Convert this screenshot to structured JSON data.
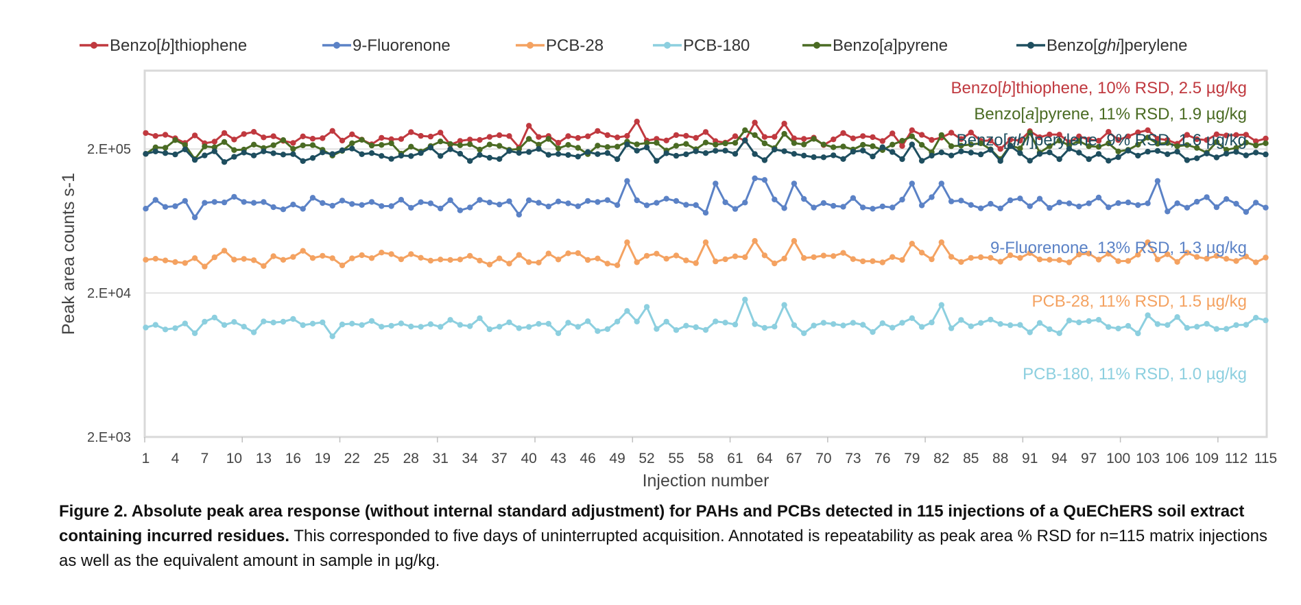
{
  "chart_data": {
    "type": "line",
    "ylabel": "Peak area counts s-1",
    "xlabel": "Injection number",
    "y_scale": "log",
    "ylim": [
      2000,
      700000
    ],
    "y_ticks": [
      2000,
      20000,
      200000
    ],
    "y_tick_labels": [
      "2.E+03",
      "2.E+04",
      "2.E+05"
    ],
    "x_range": [
      1,
      115
    ],
    "x_tick_labels": [
      1,
      4,
      7,
      10,
      13,
      16,
      19,
      22,
      25,
      28,
      31,
      34,
      37,
      40,
      43,
      46,
      49,
      52,
      55,
      58,
      61,
      64,
      67,
      70,
      73,
      76,
      79,
      82,
      85,
      88,
      91,
      94,
      97,
      100,
      103,
      106,
      109,
      112,
      115
    ],
    "grid": "horizontal",
    "legend_position": "top",
    "series": [
      {
        "name": "Benzo[b]thiophene",
        "name_parts": [
          "Benzo[",
          "b",
          "]thiophene"
        ],
        "color": "#c0393f",
        "base": 240000,
        "rsd": 10,
        "amount": "2.5 µg/kg",
        "annotation_parts": [
          "Benzo[",
          "b",
          "]thiophene, 10% RSD, 2.5 µg/kg"
        ],
        "points": [
          [
            39,
            205000
          ],
          [
            40,
            290000
          ],
          [
            51,
            310000
          ],
          [
            63,
            305000
          ],
          [
            66,
            300000
          ],
          [
            78,
            210000
          ],
          [
            79,
            270000
          ],
          [
            88,
            200000
          ],
          [
            103,
            270000
          ]
        ]
      },
      {
        "name": "9-Fluorenone",
        "name_parts": [
          "9-Fluorenone"
        ],
        "color": "#5b82c6",
        "base": 83000,
        "rsd": 13,
        "amount": "1.3 µg/kg",
        "annotation_parts": [
          "",
          "",
          "9-Fluorenone, 13% RSD, 1.3 µg/kg"
        ],
        "points": [
          [
            1,
            77000
          ],
          [
            6,
            67000
          ],
          [
            39,
            70000
          ],
          [
            50,
            120000
          ],
          [
            59,
            115000
          ],
          [
            63,
            125000
          ],
          [
            64,
            122000
          ],
          [
            67,
            115000
          ],
          [
            68,
            90000
          ],
          [
            78,
            89000
          ],
          [
            79,
            115000
          ],
          [
            82,
            115000
          ],
          [
            89,
            88000
          ],
          [
            94,
            85000
          ],
          [
            104,
            120000
          ],
          [
            108,
            86000
          ]
        ]
      },
      {
        "name": "PCB-28",
        "name_parts": [
          "PCB-28"
        ],
        "color": "#f4a261",
        "base": 35000,
        "rsd": 11,
        "amount": "1.5 µg/kg",
        "annotation_parts": [
          "",
          "",
          "PCB-28, 11% RSD, 1.5 µg/kg"
        ],
        "points": [
          [
            1,
            34000
          ],
          [
            7,
            30500
          ],
          [
            36,
            31500
          ],
          [
            50,
            45000
          ],
          [
            58,
            45000
          ],
          [
            63,
            46000
          ],
          [
            67,
            46000
          ],
          [
            68,
            35000
          ],
          [
            79,
            44000
          ],
          [
            82,
            45000
          ],
          [
            88,
            33000
          ],
          [
            103,
            45000
          ]
        ]
      },
      {
        "name": "PCB-180",
        "name_parts": [
          "PCB-180"
        ],
        "color": "#8ccfdf",
        "base": 12000,
        "rsd": 11,
        "amount": "1.0 µg/kg",
        "annotation_parts": [
          "",
          "",
          "PCB-180, 11% RSD, 1.0 µg/kg"
        ],
        "points": [
          [
            1,
            11500
          ],
          [
            6,
            10500
          ],
          [
            8,
            13500
          ],
          [
            20,
            10000
          ],
          [
            43,
            10500
          ],
          [
            50,
            15000
          ],
          [
            52,
            16000
          ],
          [
            62,
            18000
          ],
          [
            66,
            16500
          ],
          [
            68,
            10500
          ],
          [
            82,
            16500
          ],
          [
            84,
            13000
          ],
          [
            94,
            10500
          ],
          [
            103,
            14000
          ]
        ]
      },
      {
        "name": "Benzo[a]pyrene",
        "name_parts": [
          "Benzo[",
          "a",
          "]pyrene"
        ],
        "color": "#4a6b23",
        "base": 210000,
        "rsd": 11,
        "amount": "1.9 µg/kg",
        "annotation_parts": [
          "Benzo[",
          "a",
          "]pyrene, 11% RSD, 1.9 µg/kg"
        ],
        "points": [
          [
            1,
            185000
          ],
          [
            6,
            170000
          ],
          [
            20,
            180000
          ],
          [
            39,
            200000
          ],
          [
            40,
            235000
          ],
          [
            62,
            270000
          ],
          [
            63,
            250000
          ],
          [
            66,
            255000
          ],
          [
            79,
            245000
          ],
          [
            82,
            250000
          ],
          [
            88,
            170000
          ],
          [
            91,
            260000
          ],
          [
            103,
            240000
          ]
        ]
      },
      {
        "name": "Benzo[ghi]perylene",
        "name_parts": [
          "Benzo[",
          "ghi",
          "]perylene"
        ],
        "color": "#1e4e5f",
        "base": 185000,
        "rsd": 9,
        "amount": "1.6 µg/kg",
        "annotation_parts": [
          "Benzo[",
          "ghi",
          "]perylene, 9% RSD, 1.6 µg/kg"
        ],
        "points": [
          [
            1,
            185000
          ],
          [
            6,
            168000
          ],
          [
            34,
            165000
          ],
          [
            49,
            170000
          ],
          [
            50,
            215000
          ],
          [
            52,
            205000
          ],
          [
            61,
            185000
          ],
          [
            62,
            230000
          ],
          [
            68,
            180000
          ],
          [
            78,
            170000
          ],
          [
            79,
            215000
          ],
          [
            88,
            165000
          ],
          [
            89,
            210000
          ],
          [
            94,
            170000
          ]
        ]
      }
    ]
  },
  "caption": {
    "bold": "Figure 2. Absolute peak area response (without internal standard adjustment) for PAHs and PCBs detected in 115 injections of a QuEChERS soil extract containing incurred residues.",
    "text": " This corresponded to five days of uninterrupted acquisition. Annotated is repeatability as peak area % RSD for n=115 matrix injections as well as the equivalent amount in sample in µg/kg."
  }
}
